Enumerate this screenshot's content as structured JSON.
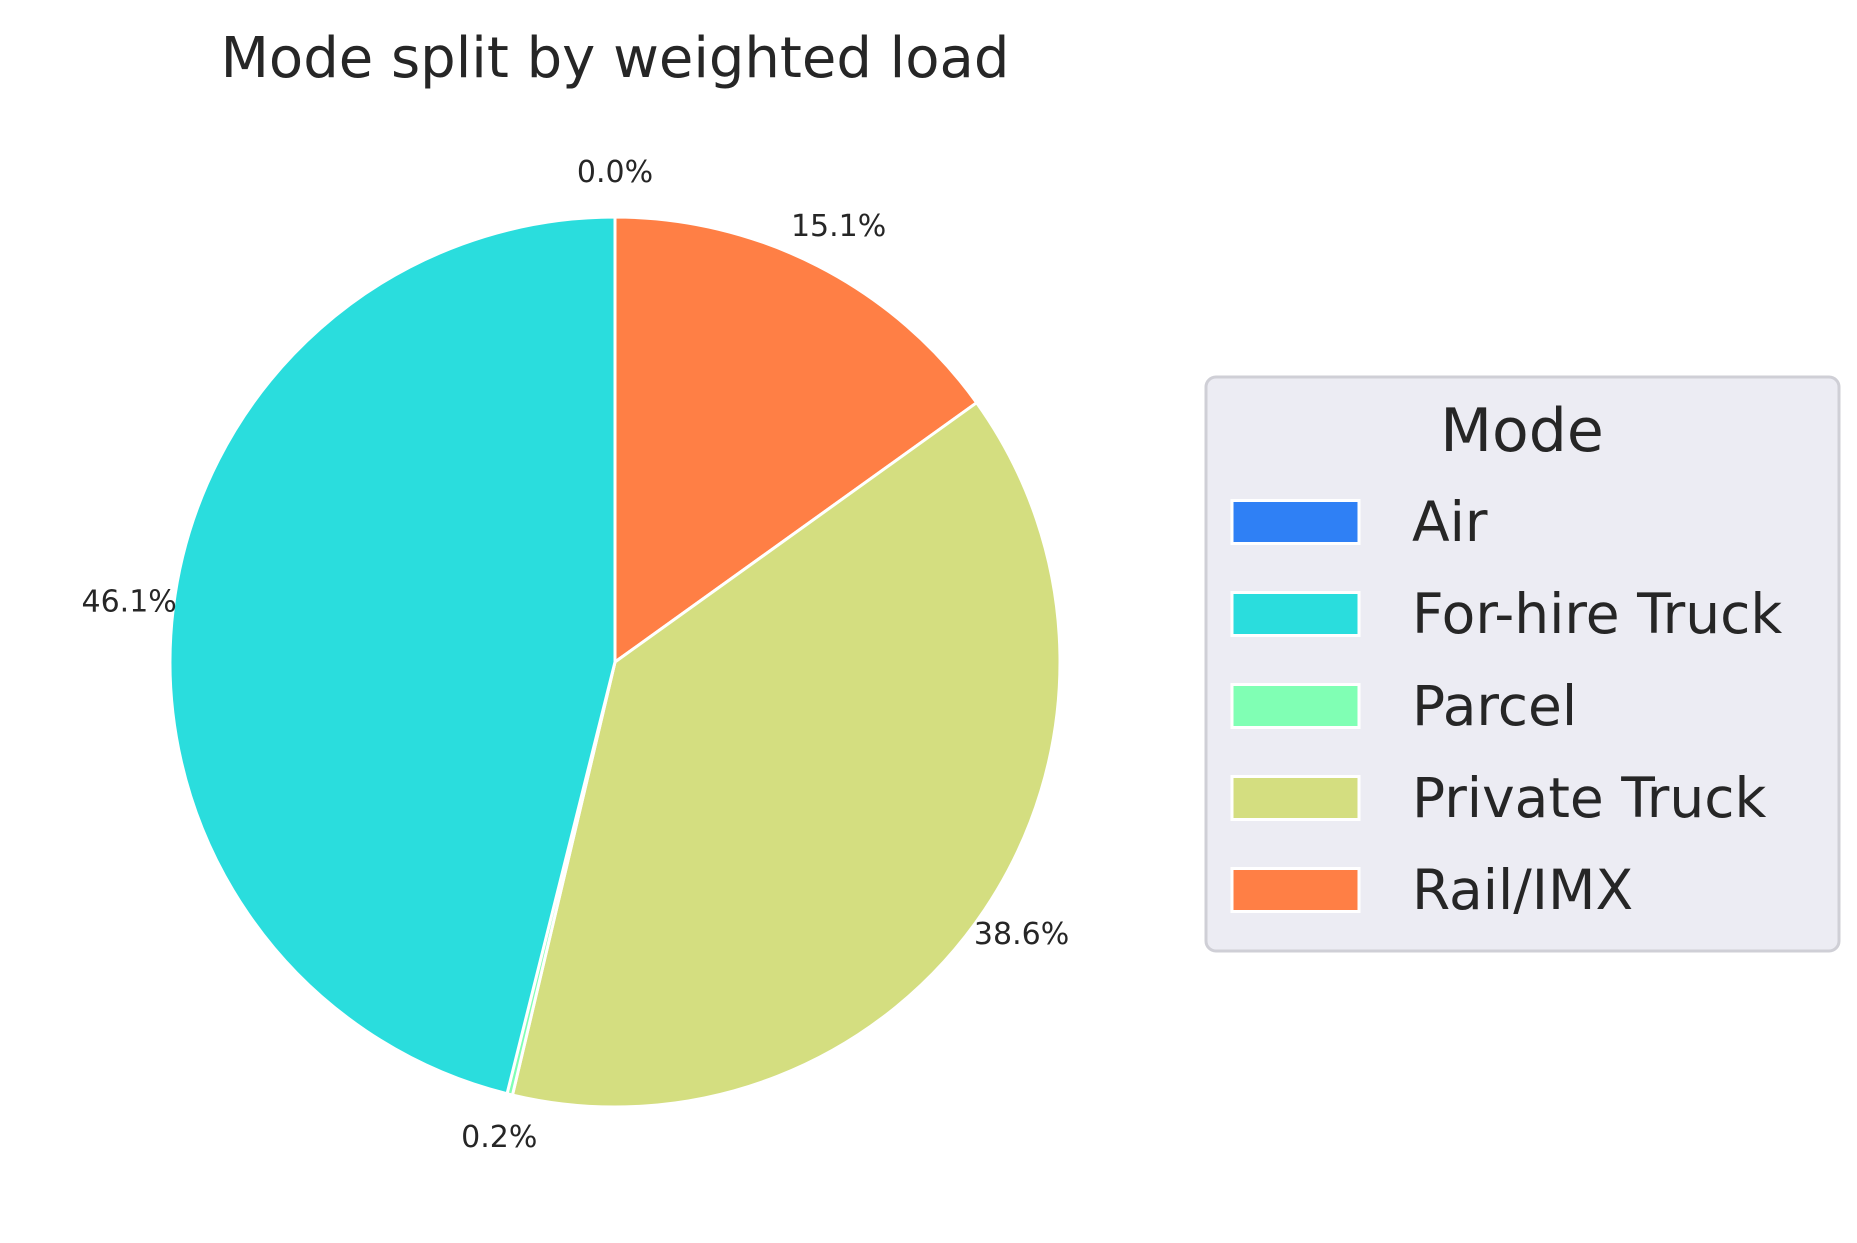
{
  "chart_data": {
    "type": "pie",
    "title": "Mode split by weighted load",
    "start_angle_deg": 90,
    "direction": "clockwise",
    "slices": [
      {
        "label": "Rail/IMX",
        "value": 15.1,
        "pct_label": "15.1%",
        "color": "#ff7f45"
      },
      {
        "label": "Private Truck",
        "value": 38.6,
        "pct_label": "38.6%",
        "color": "#d4de80"
      },
      {
        "label": "Parcel",
        "value": 0.2,
        "pct_label": "0.2%",
        "color": "#80ffb4"
      },
      {
        "label": "For-hire Truck",
        "value": 46.1,
        "pct_label": "46.1%",
        "color": "#2adddd"
      },
      {
        "label": "Air",
        "value": 0.0,
        "pct_label": "0.0%",
        "color": "#2f80f5"
      }
    ],
    "legend": {
      "title": "Mode",
      "placement": "center-right",
      "items": [
        {
          "label": "Air",
          "color": "#2f80f5"
        },
        {
          "label": "For-hire Truck",
          "color": "#2adddd"
        },
        {
          "label": "Parcel",
          "color": "#80ffb4"
        },
        {
          "label": "Private Truck",
          "color": "#d4de80"
        },
        {
          "label": "Rail/IMX",
          "color": "#ff7f45"
        }
      ]
    }
  }
}
